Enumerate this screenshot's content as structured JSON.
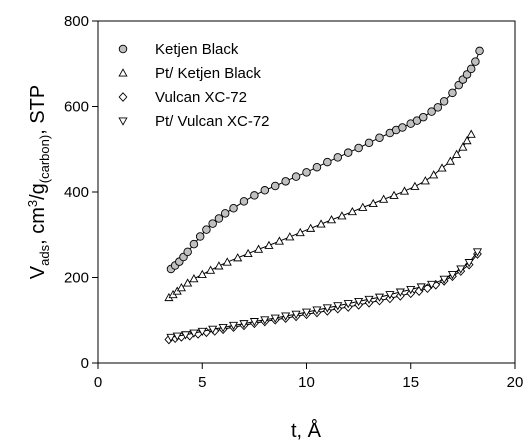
{
  "chart_data": {
    "type": "scatter",
    "title": "",
    "xlabel": "t, Å",
    "ylabel": {
      "base": "V",
      "sub1": "ads",
      "mid": ", cm",
      "sup": "3",
      "mid2": "/g",
      "sub2": "(carbon)",
      "end": ", STP"
    },
    "xlim": [
      0,
      20
    ],
    "ylim": [
      0,
      800
    ],
    "xticks": [
      "0",
      "5",
      "10",
      "15",
      "20"
    ],
    "yticks": [
      "0",
      "200",
      "400",
      "600",
      "800"
    ],
    "grid": false,
    "legend_position": "top-left",
    "series": [
      {
        "name": "Ketjen Black",
        "marker": "circle",
        "fill": "#c0c0c0",
        "trend_line": true,
        "x": [
          3.5,
          3.7,
          3.9,
          4.1,
          4.3,
          4.6,
          4.9,
          5.2,
          5.5,
          5.8,
          6.1,
          6.5,
          7.0,
          7.5,
          8.0,
          8.5,
          9.0,
          9.5,
          10.0,
          10.5,
          11.0,
          11.5,
          12.0,
          12.5,
          13.0,
          13.5,
          14.0,
          14.3,
          14.6,
          15.0,
          15.3,
          15.6,
          16.0,
          16.3,
          16.6,
          17.0,
          17.3,
          17.5,
          17.7,
          17.9,
          18.1,
          18.3
        ],
        "y": [
          220,
          228,
          237,
          248,
          260,
          278,
          296,
          312,
          326,
          338,
          350,
          362,
          378,
          392,
          404,
          414,
          425,
          436,
          446,
          458,
          470,
          481,
          492,
          503,
          515,
          527,
          538,
          545,
          551,
          560,
          567,
          575,
          588,
          598,
          612,
          632,
          650,
          663,
          675,
          688,
          705,
          730
        ]
      },
      {
        "name": "Pt/ Ketjen Black",
        "marker": "triangle-up",
        "fill": "#ffffff",
        "trend_line": true,
        "x": [
          3.4,
          3.6,
          3.8,
          4.0,
          4.3,
          4.6,
          5.0,
          5.4,
          5.8,
          6.2,
          6.7,
          7.2,
          7.7,
          8.2,
          8.7,
          9.2,
          9.7,
          10.2,
          10.7,
          11.2,
          11.7,
          12.2,
          12.7,
          13.2,
          13.7,
          14.2,
          14.7,
          15.2,
          15.7,
          16.1,
          16.5,
          16.9,
          17.2,
          17.5,
          17.7,
          17.9
        ],
        "y": [
          153,
          160,
          168,
          176,
          187,
          197,
          207,
          217,
          227,
          236,
          246,
          256,
          266,
          275,
          285,
          295,
          305,
          315,
          325,
          335,
          344,
          354,
          364,
          373,
          383,
          392,
          402,
          413,
          426,
          440,
          456,
          472,
          488,
          505,
          520,
          535
        ]
      },
      {
        "name": "Vulcan XC-72",
        "marker": "diamond",
        "fill": "#ffffff",
        "trend_line": true,
        "x": [
          3.4,
          3.7,
          4.0,
          4.4,
          4.8,
          5.2,
          5.6,
          6.0,
          6.5,
          7.0,
          7.5,
          8.0,
          8.5,
          9.0,
          9.5,
          10.0,
          10.5,
          11.0,
          11.5,
          12.0,
          12.5,
          13.0,
          13.5,
          14.0,
          14.5,
          15.0,
          15.4,
          15.8,
          16.2,
          16.6,
          17.0,
          17.4,
          17.8,
          18.2
        ],
        "y": [
          55,
          58,
          61,
          64,
          68,
          72,
          75,
          79,
          84,
          88,
          93,
          97,
          101,
          105,
          109,
          114,
          118,
          122,
          127,
          131,
          136,
          141,
          146,
          151,
          157,
          163,
          168,
          175,
          183,
          192,
          203,
          215,
          230,
          255
        ]
      },
      {
        "name": "Pt/ Vulcan XC-72",
        "marker": "triangle-down",
        "fill": "#ffffff",
        "trend_line": true,
        "x": [
          3.5,
          3.8,
          4.2,
          4.6,
          5.0,
          5.5,
          6.0,
          6.5,
          7.0,
          7.5,
          8.0,
          8.5,
          9.0,
          9.5,
          10.0,
          10.5,
          11.0,
          11.5,
          12.0,
          12.5,
          13.0,
          13.5,
          14.0,
          14.5,
          15.0,
          15.5,
          16.0,
          16.6,
          17.0,
          17.4,
          17.8,
          18.2
        ],
        "y": [
          60,
          63,
          66,
          70,
          74,
          79,
          83,
          88,
          92,
          97,
          101,
          105,
          110,
          114,
          119,
          124,
          129,
          134,
          139,
          144,
          149,
          154,
          160,
          166,
          172,
          178,
          184,
          196,
          207,
          220,
          235,
          260
        ]
      }
    ]
  }
}
